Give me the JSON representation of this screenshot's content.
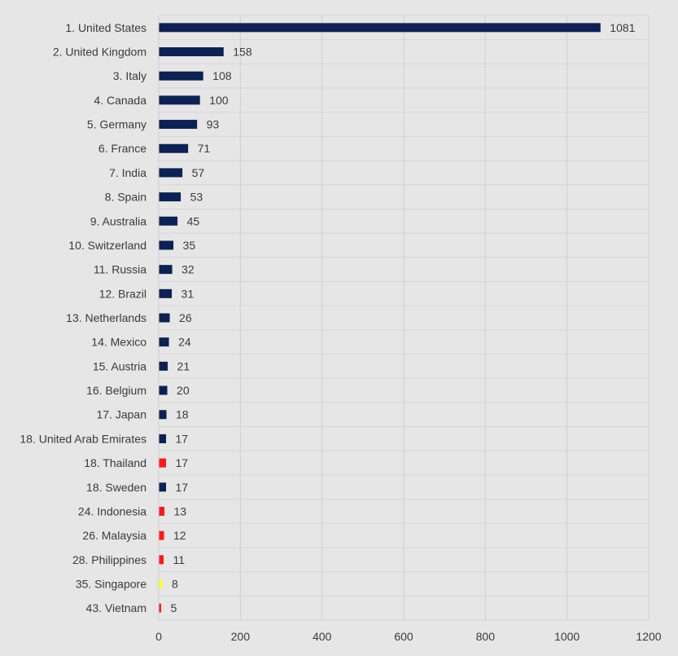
{
  "chart_data": {
    "type": "bar",
    "orientation": "horizontal",
    "title": "",
    "xlabel": "",
    "ylabel": "",
    "xlim": [
      0,
      1200
    ],
    "x_ticks": [
      0,
      200,
      400,
      600,
      800,
      1000,
      1200
    ],
    "grid": true,
    "colors": {
      "navy": "#0d2152",
      "red": "#ff1a1a",
      "yellow": "#ffff33"
    },
    "categories": [
      "1. United States",
      "2. United Kingdom",
      "3. Italy",
      "4. Canada",
      "5. Germany",
      "6. France",
      "7. India",
      "8. Spain",
      "9. Australia",
      "10. Switzerland",
      "11. Russia",
      "12. Brazil",
      "13. Netherlands",
      "14. Mexico",
      "15. Austria",
      "16. Belgium",
      "17. Japan",
      "18. United Arab Emirates",
      "18. Thailand",
      "18. Sweden",
      "24. Indonesia",
      "26. Malaysia",
      "28. Philippines",
      "35. Singapore",
      "43. Vietnam"
    ],
    "values": [
      1081,
      158,
      108,
      100,
      93,
      71,
      57,
      53,
      45,
      35,
      32,
      31,
      26,
      24,
      21,
      20,
      18,
      17,
      17,
      17,
      13,
      12,
      11,
      8,
      5
    ],
    "bar_colors": [
      "navy",
      "navy",
      "navy",
      "navy",
      "navy",
      "navy",
      "navy",
      "navy",
      "navy",
      "navy",
      "navy",
      "navy",
      "navy",
      "navy",
      "navy",
      "navy",
      "navy",
      "navy",
      "red",
      "navy",
      "red",
      "red",
      "red",
      "yellow",
      "red"
    ]
  }
}
